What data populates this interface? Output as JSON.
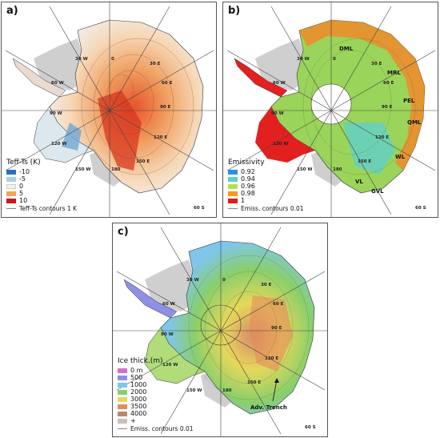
{
  "panels": {
    "a": {
      "label": "a)",
      "legend_title": "Teff-Ts (K)",
      "legend": [
        {
          "label": "-10",
          "color": "#2c6fb6"
        },
        {
          "label": "-5",
          "color": "#a9cfe6"
        },
        {
          "label": "0",
          "color": "#f7f0e6"
        },
        {
          "label": "5",
          "color": "#f1a55b"
        },
        {
          "label": "10",
          "color": "#c8161a"
        }
      ],
      "contour_note": "Teff-Ts contours 1 K"
    },
    "b": {
      "label": "b)",
      "legend_title": "Emissivity",
      "legend": [
        {
          "label": "0.92",
          "color": "#2f8fe0"
        },
        {
          "label": "0.94",
          "color": "#5fd0c8"
        },
        {
          "label": "0.96",
          "color": "#b2e24a"
        },
        {
          "label": "0.98",
          "color": "#f39a1e"
        },
        {
          "label": "1",
          "color": "#e11a1a"
        }
      ],
      "contour_note": "Emiss. contours 0.01",
      "regions": [
        "DML",
        "MRL",
        "PEL",
        "QML",
        "WL",
        "GVL",
        "VL"
      ]
    },
    "c": {
      "label": "c)",
      "legend_title": "Ice thick.(m)",
      "legend": [
        {
          "label": "0 m",
          "color": "#d46fce"
        },
        {
          "label": "500",
          "color": "#8f8fe6"
        },
        {
          "label": "1000",
          "color": "#7fc6ea"
        },
        {
          "label": "2000",
          "color": "#89cf6a"
        },
        {
          "label": "3000",
          "color": "#e6d85a"
        },
        {
          "label": "3500",
          "color": "#e48a5b"
        },
        {
          "label": "4000",
          "color": "#b88870"
        },
        {
          "label": "+",
          "color": "#c9c0b8"
        }
      ],
      "contour_note": "Emiss. contours 0.01",
      "annotation": "Adv. Trench"
    }
  },
  "graticule": {
    "meridians": [
      "0",
      "30 E",
      "60 E",
      "90 E",
      "120 E",
      "150 E",
      "180",
      "150 W",
      "120 W",
      "90 W",
      "60 W",
      "30 W"
    ],
    "parallel": "60 S"
  },
  "colors": {
    "ice_shelf": "#cfcfcf",
    "land_base": "#e8e4df",
    "graticule": "#444444"
  }
}
